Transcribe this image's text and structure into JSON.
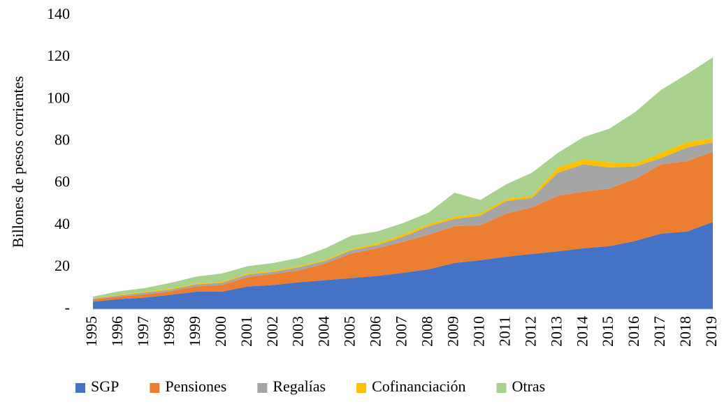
{
  "chart_data": {
    "type": "stacked_area",
    "y_label": "Billones de pesos corrientes",
    "categories": [
      "1995",
      "1996",
      "1997",
      "1998",
      "1999",
      "2000",
      "2001",
      "2002",
      "2003",
      "2004",
      "2005",
      "2006",
      "2007",
      "2008",
      "2009",
      "2010",
      "2011",
      "2012",
      "2013",
      "2014",
      "2015",
      "2016",
      "2017",
      "2018",
      "2019"
    ],
    "series": [
      {
        "name": "SGP",
        "color": "#4472c4",
        "values": [
          3.5,
          4.8,
          5.5,
          6.8,
          8.3,
          8.3,
          10.8,
          11.5,
          12.8,
          13.8,
          14.8,
          15.8,
          17.3,
          19,
          22,
          23.3,
          25,
          26.3,
          27.5,
          29,
          30,
          32.5,
          36,
          37,
          41.5
        ]
      },
      {
        "name": "Pensiones",
        "color": "#ed7d31",
        "values": [
          1,
          1.2,
          1.5,
          1.7,
          2.5,
          3.2,
          4.5,
          5.3,
          5.7,
          8,
          11.7,
          13.2,
          14.7,
          16.5,
          17.5,
          16.7,
          20.5,
          22.2,
          26.5,
          27,
          27.5,
          29.5,
          33,
          33.5,
          33.5
        ]
      },
      {
        "name": "Regalías",
        "color": "#a5a5a5",
        "values": [
          0.5,
          0.5,
          0.8,
          0.8,
          1,
          1,
          1.2,
          1,
          1.5,
          1.2,
          1.5,
          1.5,
          2.5,
          4,
          3.5,
          4.5,
          6,
          4.5,
          11,
          13,
          10,
          6,
          3,
          6.5,
          4.5
        ]
      },
      {
        "name": "Cofinanciación",
        "color": "#ffc000",
        "values": [
          0.2,
          0.3,
          0.4,
          0.5,
          0.4,
          0.5,
          0.5,
          0.5,
          0.5,
          0.5,
          0.5,
          0.8,
          1,
          1,
          1,
          1,
          1,
          1,
          2.5,
          2.5,
          2.5,
          1.5,
          2.5,
          2.5,
          2
        ]
      },
      {
        "name": "Otras",
        "color": "#a9d18e",
        "values": [
          0.8,
          1.7,
          1.8,
          2.7,
          3.3,
          4,
          3.5,
          3.7,
          4,
          5.5,
          6.5,
          5.7,
          5.5,
          5.5,
          11.5,
          6.5,
          7,
          11,
          7,
          10.5,
          16,
          24.5,
          30,
          32.5,
          38.5
        ]
      }
    ],
    "ylim": [
      0,
      140
    ],
    "yticks": [
      {
        "value": 0,
        "label": "-"
      },
      20,
      40,
      60,
      80,
      100,
      120,
      140
    ],
    "legend": "bottom"
  }
}
